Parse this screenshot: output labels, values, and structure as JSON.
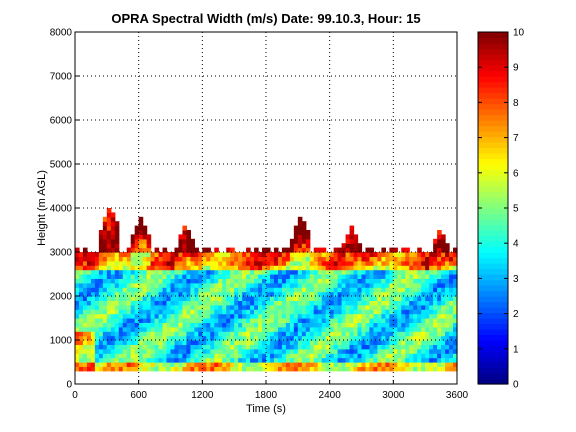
{
  "chart_data": {
    "type": "heatmap",
    "title": "OPRA Spectral Width (m/s)  Date: 99.10.3, Hour: 15",
    "xlabel": "Time (s)",
    "ylabel": "Height (m AGL)",
    "xlim": [
      0,
      3600
    ],
    "ylim": [
      0,
      8000
    ],
    "x_ticks": [
      0,
      600,
      1200,
      1800,
      2400,
      3000,
      3600
    ],
    "y_ticks": [
      0,
      1000,
      2000,
      3000,
      4000,
      5000,
      6000,
      7000,
      8000
    ],
    "grid": true,
    "colormap": "jet",
    "color_range": [
      0,
      10
    ],
    "colorbar_ticks": [
      0,
      1,
      2,
      3,
      4,
      5,
      6,
      7,
      8,
      9,
      10
    ],
    "data_bottom_m": 300,
    "typical_top_m": 3000,
    "value_bands": [
      {
        "height_range_m": [
          300,
          500
        ],
        "typical_value": 6.5
      },
      {
        "height_range_m": [
          500,
          2600
        ],
        "typical_value": 4.0
      },
      {
        "height_range_m": [
          2600,
          3000
        ],
        "typical_value": 6.8
      },
      {
        "height_range_m": [
          3000,
          3500
        ],
        "typical_value": 8.5
      }
    ],
    "plume_peaks": [
      {
        "time_s": 330,
        "top_m": 4000
      },
      {
        "time_s": 620,
        "top_m": 3800
      },
      {
        "time_s": 1040,
        "top_m": 3600
      },
      {
        "time_s": 2130,
        "top_m": 3800
      },
      {
        "time_s": 2610,
        "top_m": 3600
      },
      {
        "time_s": 3440,
        "top_m": 3500
      }
    ]
  },
  "colors": {
    "background": "#ffffff",
    "axes_frame": "#000000",
    "grid": "#000000"
  }
}
